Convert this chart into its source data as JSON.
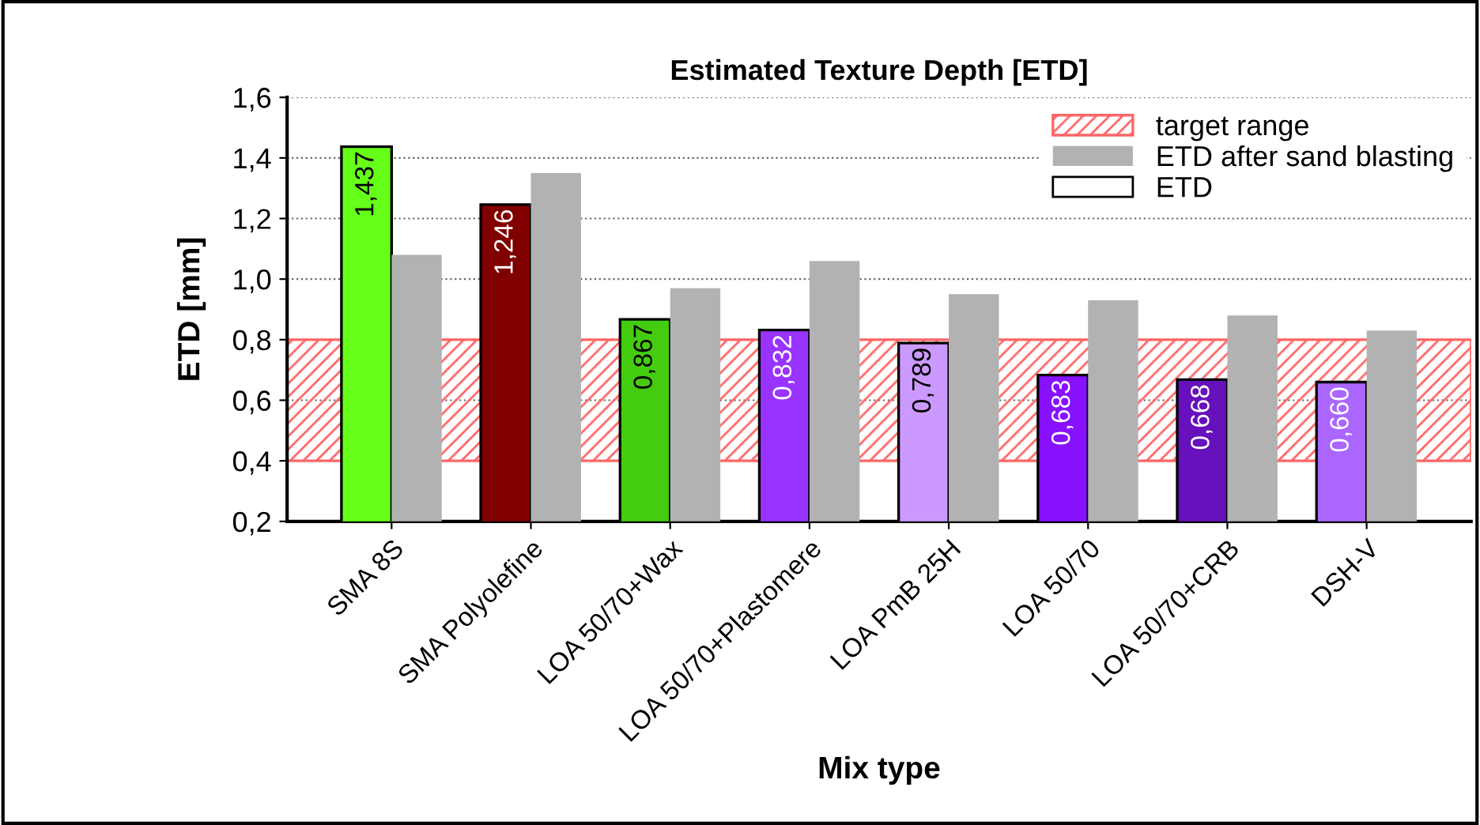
{
  "chart_data": {
    "type": "bar",
    "title": "Estimated Texture Depth [ETD]",
    "xlabel": "Mix type",
    "ylabel": "ETD [mm]",
    "categories": [
      "SMA 8S",
      "SMA Polyolefine",
      "LOA 50/70+Wax",
      "LOA 50/70+Plastomere",
      "LOA PmB 25H",
      "LOA 50/70",
      "LOA 50/70+CRB",
      "DSH-V"
    ],
    "series": [
      {
        "name": "ETD",
        "colors": [
          "#66ff1a",
          "#800000",
          "#44cc11",
          "#9933ff",
          "#cc99ff",
          "#8811ff",
          "#6611bb",
          "#aa66ff"
        ],
        "values": [
          1.437,
          1.246,
          0.867,
          0.832,
          0.789,
          0.683,
          0.668,
          0.66
        ],
        "value_labels": [
          "1,437",
          "1,246",
          "0,867",
          "0,832",
          "0,789",
          "0,683",
          "0,668",
          "0,660"
        ]
      },
      {
        "name": "ETD after sand blasting",
        "color": "#b2b2b2",
        "values": [
          1.08,
          1.35,
          0.97,
          1.06,
          0.95,
          0.93,
          0.88,
          0.83
        ]
      }
    ],
    "bands": [
      {
        "axis": "y",
        "from": 0.4,
        "to": 0.8,
        "label": "target range",
        "color": "#ff6666"
      }
    ],
    "ylim": [
      0.2,
      1.6
    ],
    "yticks": [
      {
        "value": 0.2,
        "label": "0,2"
      },
      {
        "value": 0.4,
        "label": "0,4"
      },
      {
        "value": 0.6,
        "label": "0,6"
      },
      {
        "value": 0.8,
        "label": "0,8"
      },
      {
        "value": 1.0,
        "label": "1,0"
      },
      {
        "value": 1.2,
        "label": "1,2"
      },
      {
        "value": 1.4,
        "label": "1,4"
      },
      {
        "value": 1.6,
        "label": "1,6"
      }
    ],
    "grid": "y",
    "legend": "top right"
  }
}
